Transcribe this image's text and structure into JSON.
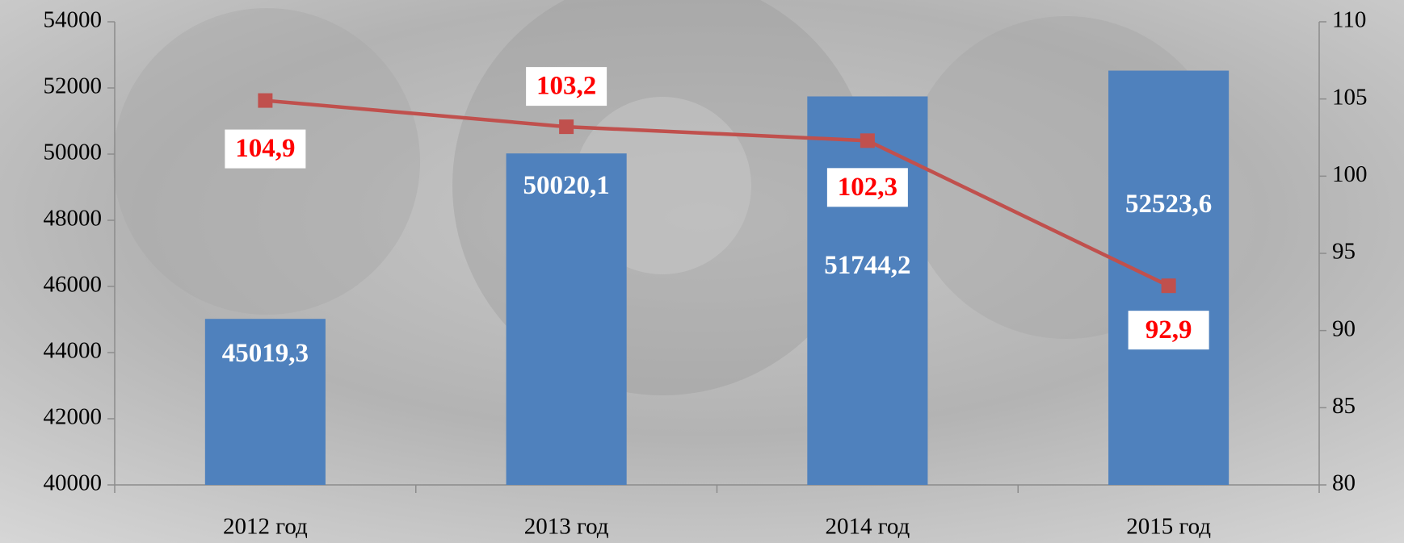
{
  "chart_data": {
    "type": "bar-line",
    "categories": [
      "2012 год",
      "2013 год",
      "2014 год",
      "2015 год"
    ],
    "series": [
      {
        "type": "bar",
        "color": "#4f81bd",
        "values": [
          45019.3,
          50020.1,
          51744.2,
          52523.6
        ],
        "value_labels": [
          "45019,3",
          "50020,1",
          "51744,2",
          "52523,6"
        ]
      },
      {
        "type": "line",
        "axis": "y2",
        "color": "#c0504d",
        "values": [
          104.9,
          103.2,
          102.3,
          92.9
        ],
        "value_labels": [
          "104,9",
          "103,2",
          "102,3",
          "92,9"
        ]
      }
    ],
    "ylim": [
      40000,
      54000
    ],
    "yticks": [
      40000,
      42000,
      44000,
      46000,
      48000,
      50000,
      52000,
      54000
    ],
    "y2lim": [
      80,
      110
    ],
    "y2ticks": [
      80,
      85,
      90,
      95,
      100,
      105,
      110
    ]
  }
}
